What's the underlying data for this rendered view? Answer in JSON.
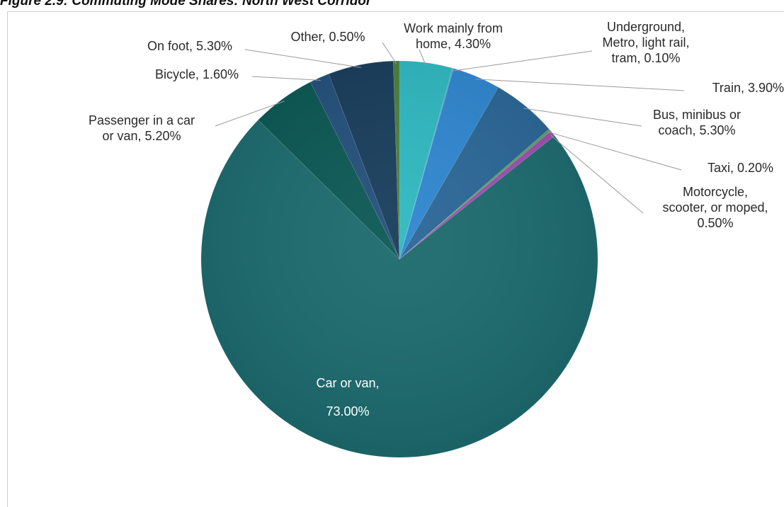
{
  "figure_title": "Figure 2.9: Commuting Mode Shares: North West Corridor",
  "chart_data": {
    "type": "pie",
    "title": "Figure 2.9: Commuting Mode Shares: North West Corridor",
    "legend": "none",
    "slices": [
      {
        "name": "Work mainly from home",
        "value": 4.3,
        "label_lines": [
          "Work mainly from",
          "home, 4.30%"
        ],
        "color": "#2fb8c0"
      },
      {
        "name": "Underground, Metro, light rail, tram",
        "value": 0.1,
        "label_lines": [
          "Underground,",
          "Metro, light rail,",
          "tram, 0.10%"
        ],
        "color": "#5aa9d6"
      },
      {
        "name": "Train",
        "value": 3.9,
        "label_lines": [
          "Train, 3.90%"
        ],
        "color": "#2f86cf"
      },
      {
        "name": "Bus, minibus or coach",
        "value": 5.3,
        "label_lines": [
          "Bus, minibus or",
          "coach, 5.30%"
        ],
        "color": "#2a6697"
      },
      {
        "name": "Taxi",
        "value": 0.2,
        "label_lines": [
          "Taxi, 0.20%"
        ],
        "color": "#58a35c"
      },
      {
        "name": "Motorcycle, scooter, or moped",
        "value": 0.5,
        "label_lines": [
          "Motorcycle,",
          "scooter, or moped,",
          "0.50%"
        ],
        "color": "#9c4fb0"
      },
      {
        "name": "Car or van",
        "value": 73.0,
        "label_lines": [
          "Car or van,",
          "73.00%"
        ],
        "color": "#1c6a6e"
      },
      {
        "name": "Passenger in a car or van",
        "value": 5.2,
        "label_lines": [
          "Passenger in a car",
          "or van, 5.20%"
        ],
        "color": "#0b5854"
      },
      {
        "name": "Bicycle",
        "value": 1.6,
        "label_lines": [
          "Bicycle, 1.60%"
        ],
        "color": "#23507a"
      },
      {
        "name": "On foot",
        "value": 5.3,
        "label_lines": [
          "On foot, 5.30%"
        ],
        "color": "#183d5c"
      },
      {
        "name": "Other",
        "value": 0.5,
        "label_lines": [
          "Other, 0.50%"
        ],
        "color": "#4a7f3e"
      }
    ]
  }
}
